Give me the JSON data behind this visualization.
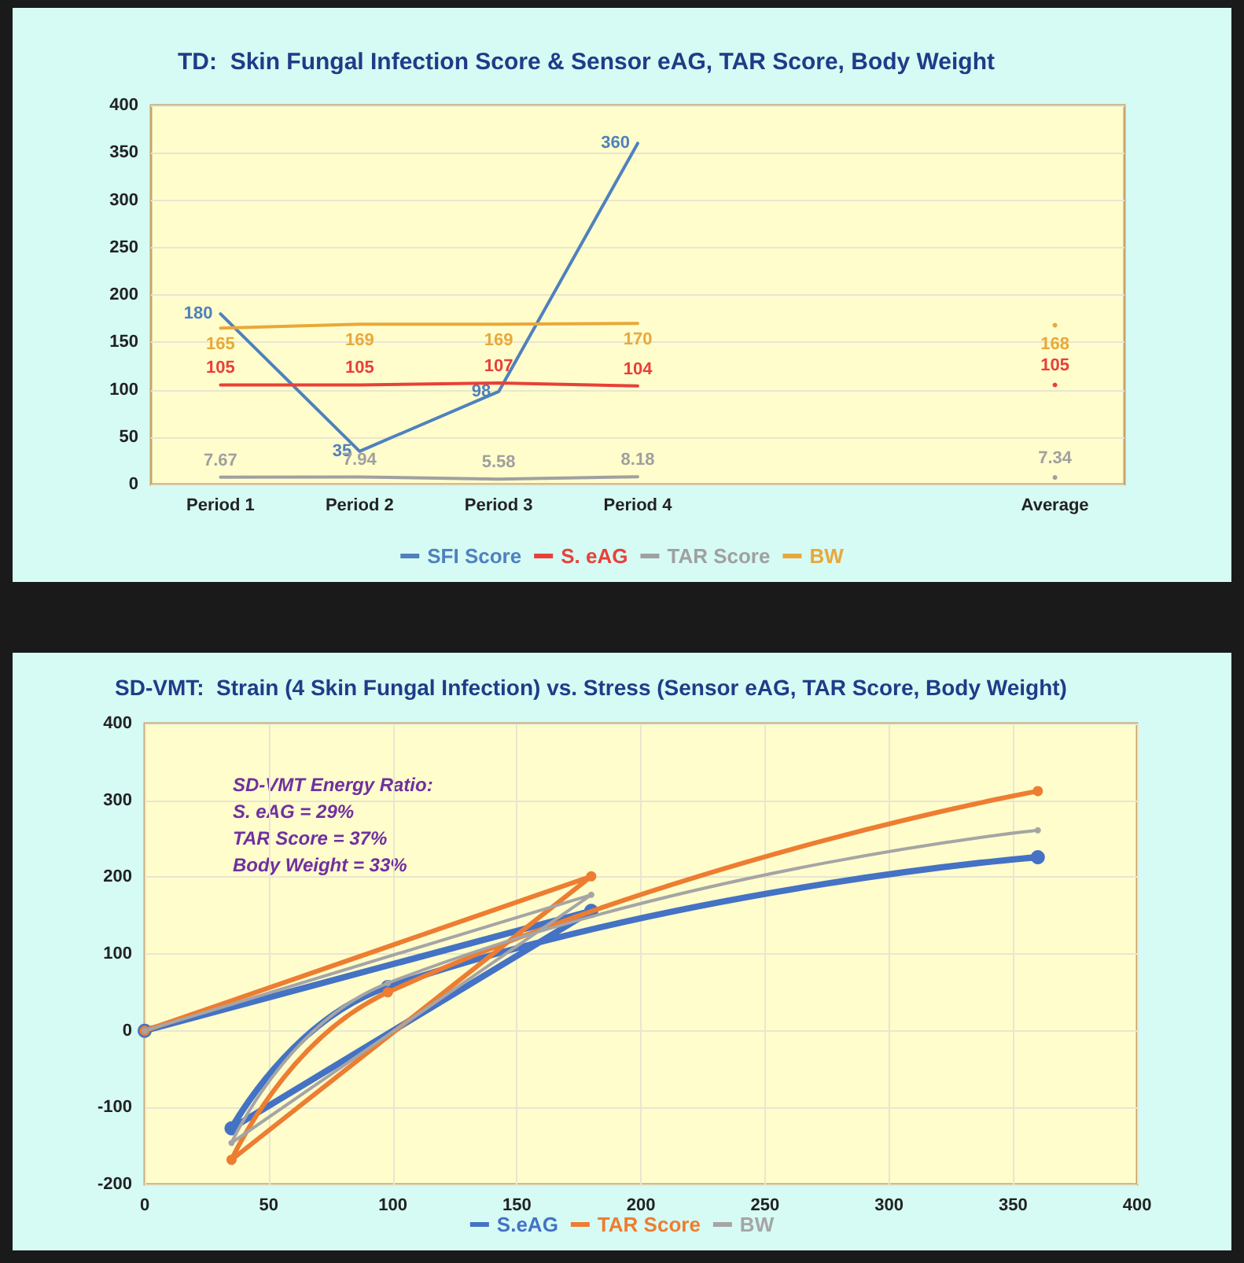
{
  "chart_data": [
    {
      "type": "line",
      "title": "TD:  Skin Fungal Infection Score & Sensor eAG, TAR Score, Body Weight",
      "categories": [
        "Period 1",
        "Period 2",
        "Period 3",
        "Period 4",
        null,
        null,
        "Average"
      ],
      "series": [
        {
          "name": "SFI Score",
          "color": "#4f81bd",
          "values": [
            180,
            35,
            98,
            360,
            null,
            null,
            null
          ]
        },
        {
          "name": "S. eAG",
          "color": "#e8403a",
          "values": [
            105,
            105,
            107,
            104,
            null,
            null,
            105
          ]
        },
        {
          "name": "TAR Score",
          "color": "#a0a0a0",
          "values": [
            7.67,
            7.94,
            5.58,
            8.18,
            null,
            null,
            7.34
          ]
        },
        {
          "name": "BW",
          "color": "#e9a83a",
          "values": [
            165,
            169,
            169,
            170,
            null,
            null,
            168
          ]
        }
      ],
      "ylim": [
        0,
        400
      ],
      "yticks": [
        0,
        50,
        100,
        150,
        200,
        250,
        300,
        350,
        400
      ],
      "grid": "y",
      "legend": "bottom",
      "data_labels": true,
      "marker": "none",
      "line_style": "solid"
    },
    {
      "type": "line",
      "title": "SD-VMT:  Strain (4 Skin Fungal Infection) vs. Stress (Sensor eAG, TAR Score, Body Weight)",
      "x": [
        0,
        180,
        35,
        98,
        360
      ],
      "series": [
        {
          "name": "S.eAG",
          "color": "#4472c4",
          "values": [
            0,
            156,
            -127,
            57,
            226
          ]
        },
        {
          "name": "TAR Score",
          "color": "#ed7d31",
          "values": [
            0,
            201,
            -168,
            50,
            312
          ]
        },
        {
          "name": "BW",
          "color": "#a5a5a5",
          "values": [
            0,
            177,
            -146,
            62,
            261
          ]
        }
      ],
      "xlim": [
        0,
        400
      ],
      "xticks": [
        0,
        50,
        100,
        150,
        200,
        250,
        300,
        350,
        400
      ],
      "ylim": [
        -200,
        400
      ],
      "yticks": [
        -200,
        -100,
        0,
        100,
        200,
        300,
        400
      ],
      "grid": true,
      "legend": "bottom",
      "marker": "circle",
      "line_style": "solid",
      "annotations": [
        "SD-VMT Energy Ratio:",
        "S. eAG = 29%",
        "TAR Score = 37%",
        "Body Weight = 33%"
      ]
    }
  ]
}
